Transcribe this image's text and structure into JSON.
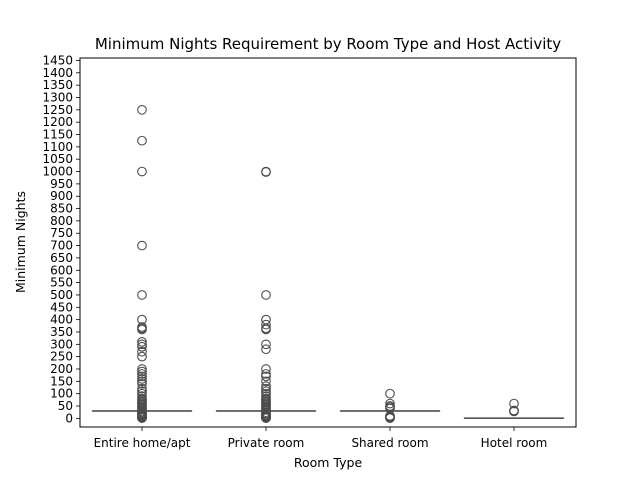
{
  "chart_data": {
    "type": "box",
    "title": "Minimum Nights Requirement by Room Type and Host Activity",
    "xlabel": "Room Type",
    "ylabel": "Minimum Nights",
    "categories": [
      "Entire home/apt",
      "Private room",
      "Shared room",
      "Hotel room"
    ],
    "yticks": [
      0,
      50,
      100,
      150,
      200,
      250,
      300,
      350,
      400,
      450,
      500,
      550,
      600,
      650,
      700,
      750,
      800,
      850,
      900,
      950,
      1000,
      1050,
      1100,
      1150,
      1200,
      1250,
      1300,
      1350,
      1400,
      1450
    ],
    "ylim": [
      -35,
      1460
    ],
    "grid": false,
    "box_color": "#4c4c4c",
    "boxes": [
      {
        "category": "Entire home/apt",
        "median": 30,
        "q1": 30,
        "q3": 30,
        "whisker_low": 30,
        "whisker_high": 30,
        "outliers": [
          1,
          2,
          3,
          4,
          5,
          6,
          7,
          8,
          9,
          10,
          12,
          14,
          15,
          18,
          20,
          21,
          25,
          28,
          35,
          40,
          45,
          50,
          55,
          60,
          65,
          70,
          75,
          80,
          90,
          100,
          110,
          120,
          140,
          150,
          160,
          170,
          180,
          190,
          200,
          250,
          270,
          290,
          300,
          310,
          360,
          365,
          370,
          400,
          500,
          700,
          1000,
          1125,
          1250
        ]
      },
      {
        "category": "Private room",
        "median": 30,
        "q1": 30,
        "q3": 30,
        "whisker_low": 30,
        "whisker_high": 30,
        "outliers": [
          1,
          2,
          3,
          4,
          5,
          6,
          7,
          8,
          10,
          12,
          14,
          15,
          20,
          25,
          35,
          40,
          45,
          50,
          55,
          60,
          65,
          70,
          75,
          80,
          90,
          100,
          110,
          120,
          130,
          150,
          170,
          180,
          200,
          280,
          300,
          360,
          365,
          380,
          400,
          500,
          998,
          1000
        ]
      },
      {
        "category": "Shared room",
        "median": 30,
        "q1": 30,
        "q3": 30,
        "whisker_low": 30,
        "whisker_high": 30,
        "outliers": [
          1,
          2,
          3,
          5,
          7,
          10,
          40,
          45,
          50,
          60,
          100
        ]
      },
      {
        "category": "Hotel room",
        "median": 1,
        "q1": 1,
        "q3": 1,
        "whisker_low": 1,
        "whisker_high": 1,
        "outliers": [
          28,
          30,
          32,
          60
        ]
      }
    ]
  }
}
